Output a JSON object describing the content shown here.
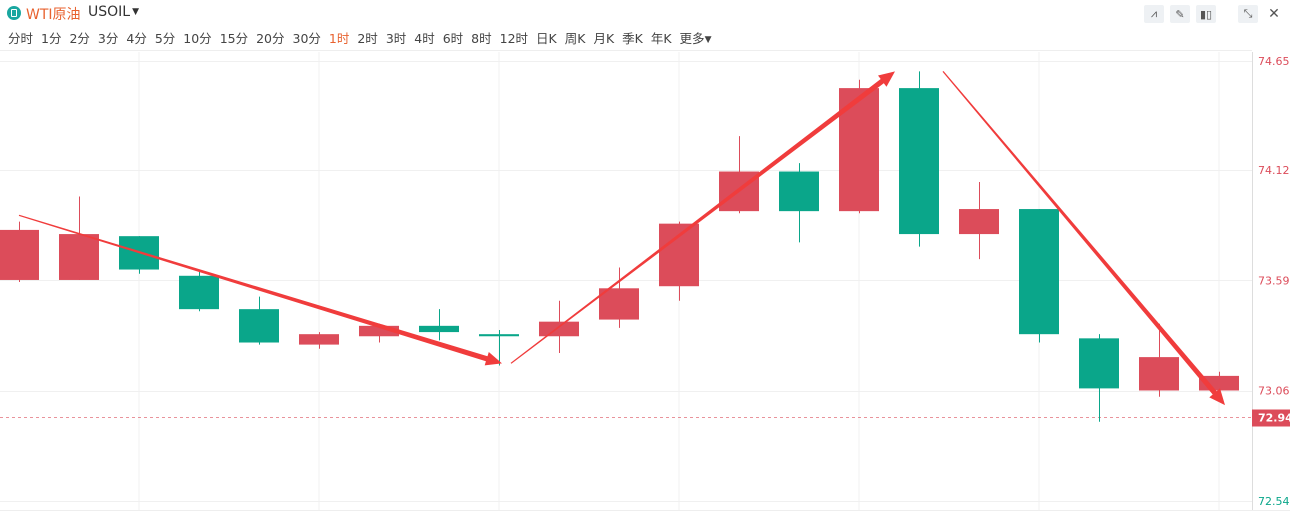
{
  "header": {
    "instrument_name": "WTI原油",
    "symbol": "USOIL",
    "tool_icons": [
      "line-draw-icon",
      "pen-icon",
      "candle-type-icon",
      "collapse-icon",
      "close-icon"
    ]
  },
  "periods": [
    {
      "label": "分时",
      "active": false
    },
    {
      "label": "1分",
      "active": false
    },
    {
      "label": "2分",
      "active": false
    },
    {
      "label": "3分",
      "active": false
    },
    {
      "label": "4分",
      "active": false
    },
    {
      "label": "5分",
      "active": false
    },
    {
      "label": "10分",
      "active": false
    },
    {
      "label": "15分",
      "active": false
    },
    {
      "label": "20分",
      "active": false
    },
    {
      "label": "30分",
      "active": false
    },
    {
      "label": "1时",
      "active": true
    },
    {
      "label": "2时",
      "active": false
    },
    {
      "label": "3时",
      "active": false
    },
    {
      "label": "4时",
      "active": false
    },
    {
      "label": "6时",
      "active": false
    },
    {
      "label": "8时",
      "active": false
    },
    {
      "label": "12时",
      "active": false
    },
    {
      "label": "日K",
      "active": false
    },
    {
      "label": "周K",
      "active": false
    },
    {
      "label": "月K",
      "active": false
    },
    {
      "label": "季K",
      "active": false
    },
    {
      "label": "年K",
      "active": false
    },
    {
      "label": "更多",
      "active": false,
      "dropdown": true
    }
  ],
  "colors": {
    "up": "#dc4c5a",
    "down": "#0aa68a",
    "arrow": "#f03c3c",
    "accent": "#e8622f",
    "price_tag": "#dc4c5a"
  },
  "chart_data": {
    "type": "candlestick",
    "ylim": [
      72.54,
      74.65
    ],
    "y_ticks": [
      "74.650",
      "74.127",
      "73.598",
      "73.069",
      "72.540"
    ],
    "current_price": 72.944,
    "current_price_label": "72.944",
    "grid": true,
    "candles": [
      {
        "open": 73.6,
        "close": 73.84,
        "high": 73.88,
        "low": 73.59
      },
      {
        "open": 73.6,
        "close": 73.82,
        "high": 74.0,
        "low": 73.6
      },
      {
        "open": 73.81,
        "close": 73.65,
        "high": 73.81,
        "low": 73.63
      },
      {
        "open": 73.62,
        "close": 73.46,
        "high": 73.64,
        "low": 73.45
      },
      {
        "open": 73.46,
        "close": 73.3,
        "high": 73.52,
        "low": 73.29
      },
      {
        "open": 73.29,
        "close": 73.34,
        "high": 73.35,
        "low": 73.27
      },
      {
        "open": 73.33,
        "close": 73.38,
        "high": 73.39,
        "low": 73.3
      },
      {
        "open": 73.38,
        "close": 73.35,
        "high": 73.46,
        "low": 73.31
      },
      {
        "open": 73.34,
        "close": 73.33,
        "high": 73.36,
        "low": 73.19
      },
      {
        "open": 73.33,
        "close": 73.4,
        "high": 73.5,
        "low": 73.25
      },
      {
        "open": 73.41,
        "close": 73.56,
        "high": 73.66,
        "low": 73.37
      },
      {
        "open": 73.57,
        "close": 73.87,
        "high": 73.88,
        "low": 73.5
      },
      {
        "open": 73.93,
        "close": 74.12,
        "high": 74.29,
        "low": 73.92
      },
      {
        "open": 74.12,
        "close": 73.93,
        "high": 74.16,
        "low": 73.78
      },
      {
        "open": 73.93,
        "close": 74.52,
        "high": 74.56,
        "low": 73.92
      },
      {
        "open": 74.52,
        "close": 73.82,
        "high": 74.6,
        "low": 73.76
      },
      {
        "open": 73.82,
        "close": 73.94,
        "high": 74.07,
        "low": 73.7
      },
      {
        "open": 73.94,
        "close": 73.34,
        "high": 73.94,
        "low": 73.3
      },
      {
        "open": 73.32,
        "close": 73.08,
        "high": 73.34,
        "low": 72.92
      },
      {
        "open": 73.07,
        "close": 73.23,
        "high": 73.39,
        "low": 73.04
      },
      {
        "open": 73.07,
        "close": 73.14,
        "high": 73.16,
        "low": 73.05
      }
    ],
    "annotations": [
      {
        "type": "arrow",
        "from": [
          0,
          73.91
        ],
        "to": [
          8.05,
          73.2
        ],
        "weight": "light-start"
      },
      {
        "type": "arrow",
        "from": [
          8.2,
          73.2
        ],
        "to": [
          14.6,
          74.6
        ],
        "weight": "light-start"
      },
      {
        "type": "arrow",
        "from": [
          15.4,
          74.6
        ],
        "to": [
          20.1,
          73.0
        ],
        "weight": "light-start"
      }
    ]
  }
}
